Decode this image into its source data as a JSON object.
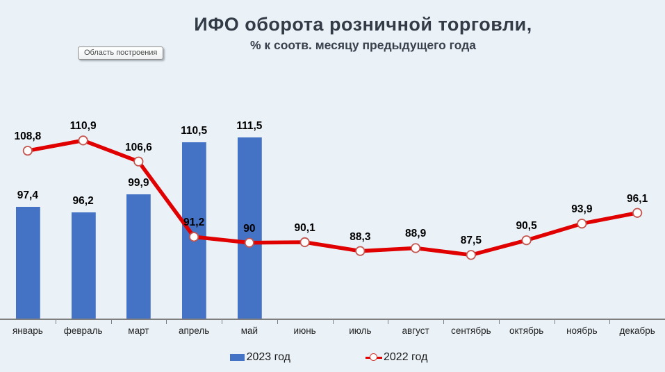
{
  "title": "ИФО оборота розничной торговли,",
  "subtitle": "% к соотв. месяцу предыдущего года",
  "plot_area_tooltip": "Область построения",
  "chart_data": {
    "type": "bar+line",
    "categories": [
      "январь",
      "февраль",
      "март",
      "апрель",
      "май",
      "июнь",
      "июль",
      "август",
      "сентябрь",
      "октябрь",
      "ноябрь",
      "декабрь"
    ],
    "series": [
      {
        "name": "2023 год",
        "type": "bar",
        "color": "#4472C4",
        "values": [
          97.4,
          96.2,
          99.9,
          110.5,
          111.5,
          null,
          null,
          null,
          null,
          null,
          null,
          null
        ],
        "labels": [
          "97,4",
          "96,2",
          "99,9",
          "110,5",
          "111,5",
          null,
          null,
          null,
          null,
          null,
          null,
          null
        ]
      },
      {
        "name": "2022 год",
        "type": "line",
        "color": "#E00000",
        "marker_fill": "#FFFFFF",
        "marker_stroke": "#C4554F",
        "values": [
          108.8,
          110.9,
          106.6,
          91.2,
          90,
          90.1,
          88.3,
          88.9,
          87.5,
          90.5,
          93.9,
          96.1
        ],
        "labels": [
          "108,8",
          "110,9",
          "106,6",
          "91,2",
          "90",
          "90,1",
          "88,3",
          "88,9",
          "87,5",
          "90,5",
          "93,9",
          "96,1"
        ]
      }
    ],
    "ylim": [
      74.5,
      125.8
    ],
    "grid": false,
    "legend_position": "bottom",
    "axis_color": "#7F7F7F",
    "background": "#EAF1F7"
  }
}
